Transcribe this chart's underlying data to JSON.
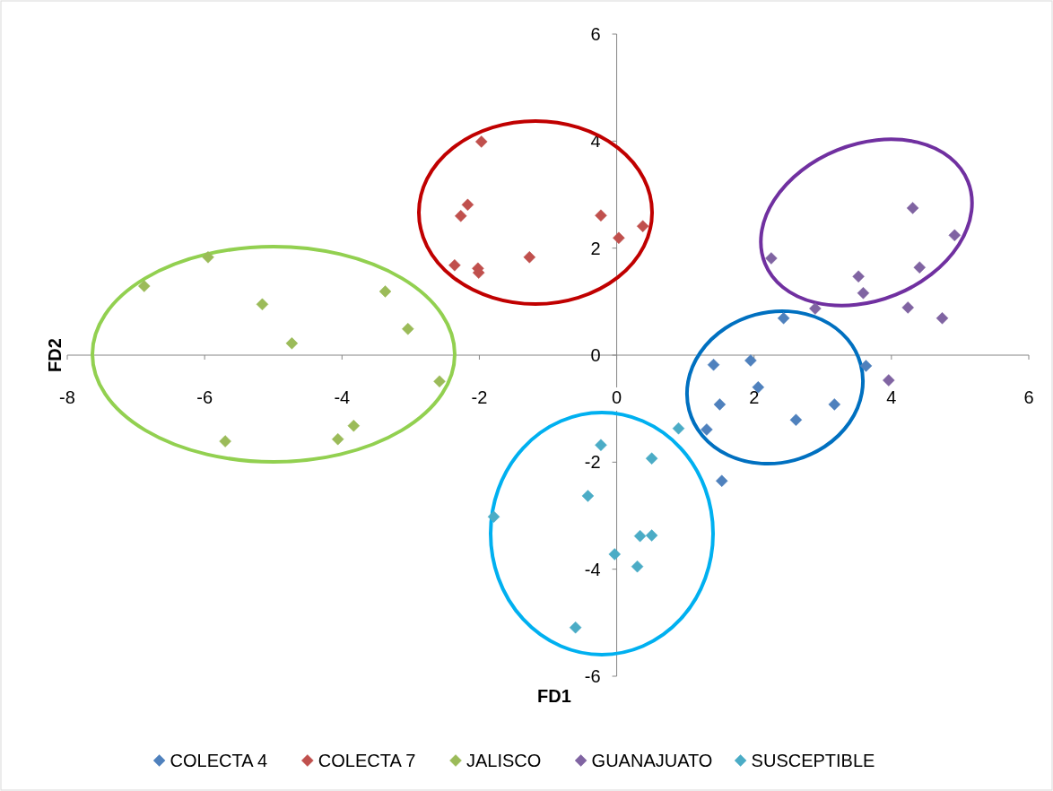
{
  "chart_data": {
    "type": "scatter",
    "xlabel": "FD1",
    "ylabel": "FD2",
    "xlim": [
      -8,
      6
    ],
    "ylim": [
      -6,
      6
    ],
    "xticks": [
      -8,
      -6,
      -4,
      -2,
      0,
      2,
      4,
      6
    ],
    "yticks": [
      -6,
      -4,
      -2,
      0,
      2,
      4,
      6
    ],
    "grid": false,
    "legend": "bottom",
    "marker": "diamond",
    "series": [
      {
        "name": "COLECTA 4",
        "color": "#4f81bd",
        "x": [
          1.41,
          1.95,
          2.06,
          1.5,
          2.43,
          2.61,
          3.17,
          3.63,
          1.31,
          1.53
        ],
        "values": [
          -0.18,
          -0.1,
          -0.6,
          -0.92,
          0.69,
          -1.21,
          -0.92,
          -0.2,
          -1.39,
          -2.35
        ]
      },
      {
        "name": "COLECTA 7",
        "color": "#c0504d",
        "x": [
          -1.97,
          -2.17,
          -2.27,
          -2.36,
          -2.02,
          -2.01,
          -1.27,
          -0.23,
          0.03,
          0.38
        ],
        "values": [
          3.99,
          2.81,
          2.6,
          1.68,
          1.62,
          1.54,
          1.83,
          2.61,
          2.19,
          2.41
        ]
      },
      {
        "name": "JALISCO",
        "color": "#9bbb59",
        "x": [
          -6.88,
          -5.95,
          -5.16,
          -4.73,
          -3.37,
          -3.04,
          -2.58,
          -3.83,
          -4.06,
          -5.7
        ],
        "values": [
          1.29,
          1.83,
          0.95,
          0.22,
          1.19,
          0.49,
          -0.49,
          -1.32,
          -1.57,
          -1.61
        ]
      },
      {
        "name": "GUANAJUATO",
        "color": "#8064a2",
        "x": [
          2.25,
          2.89,
          3.52,
          3.59,
          4.31,
          4.92,
          4.41,
          4.24,
          4.74,
          3.96
        ],
        "values": [
          1.81,
          0.87,
          1.47,
          1.16,
          2.75,
          2.24,
          1.64,
          0.89,
          0.69,
          -0.47
        ]
      },
      {
        "name": "SUSCEPTIBLE",
        "color": "#4bacc6",
        "x": [
          -0.23,
          0.9,
          0.51,
          -0.42,
          -1.79,
          0.34,
          0.51,
          -0.03,
          0.3,
          -0.6
        ],
        "values": [
          -1.68,
          -1.37,
          -1.93,
          -2.63,
          -3.02,
          -3.38,
          -3.37,
          -3.72,
          -3.95,
          -5.09
        ]
      }
    ]
  }
}
